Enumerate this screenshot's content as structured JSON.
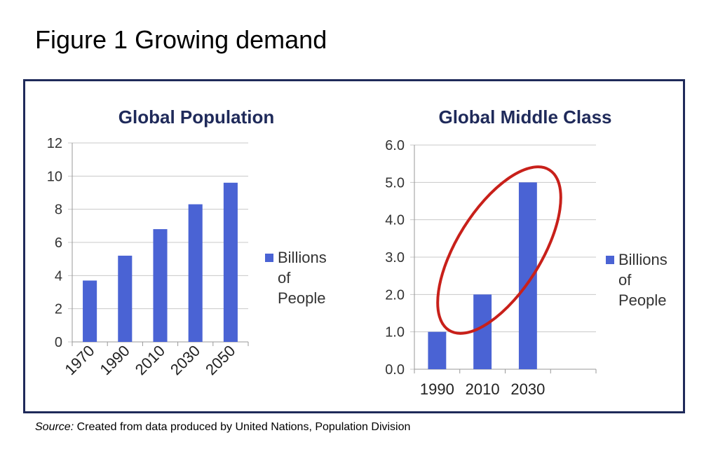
{
  "page": {
    "title": "Figure 1 Growing demand",
    "source_label": "Source:",
    "source_text": " Created from data produced by United Nations, Population Division"
  },
  "colors": {
    "bar": "#4a63d4",
    "frame": "#1f2a5a",
    "title": "#1f2a5a",
    "grid": "#c8c8c8",
    "highlight": "#c8201a"
  },
  "chart_data": [
    {
      "type": "bar",
      "title": "Global Population",
      "categories": [
        "1970",
        "1990",
        "2010",
        "2030",
        "2050"
      ],
      "series": [
        {
          "name": "Billions of People",
          "values": [
            3.7,
            5.2,
            6.8,
            8.3,
            9.6
          ]
        }
      ],
      "ylim": [
        0,
        12
      ],
      "yticks": [
        "0",
        "2",
        "4",
        "6",
        "8",
        "10",
        "12"
      ],
      "x_tick_rotation": "diagonal",
      "legend": {
        "position": "right",
        "lines": [
          "Billions",
          "of",
          "People"
        ]
      },
      "grid": true
    },
    {
      "type": "bar",
      "title": "Global Middle Class",
      "categories": [
        "1990",
        "2010",
        "2030"
      ],
      "series": [
        {
          "name": "Billions of People",
          "values": [
            1.0,
            2.0,
            5.0
          ]
        }
      ],
      "ylim": [
        0,
        6
      ],
      "yticks": [
        "0.0",
        "1.0",
        "2.0",
        "3.0",
        "4.0",
        "5.0",
        "6.0"
      ],
      "legend": {
        "position": "right",
        "lines": [
          "Billions",
          "of",
          "People"
        ]
      },
      "grid": true,
      "annotation": "red ellipse circling the 2010 and 2030 bars"
    }
  ]
}
